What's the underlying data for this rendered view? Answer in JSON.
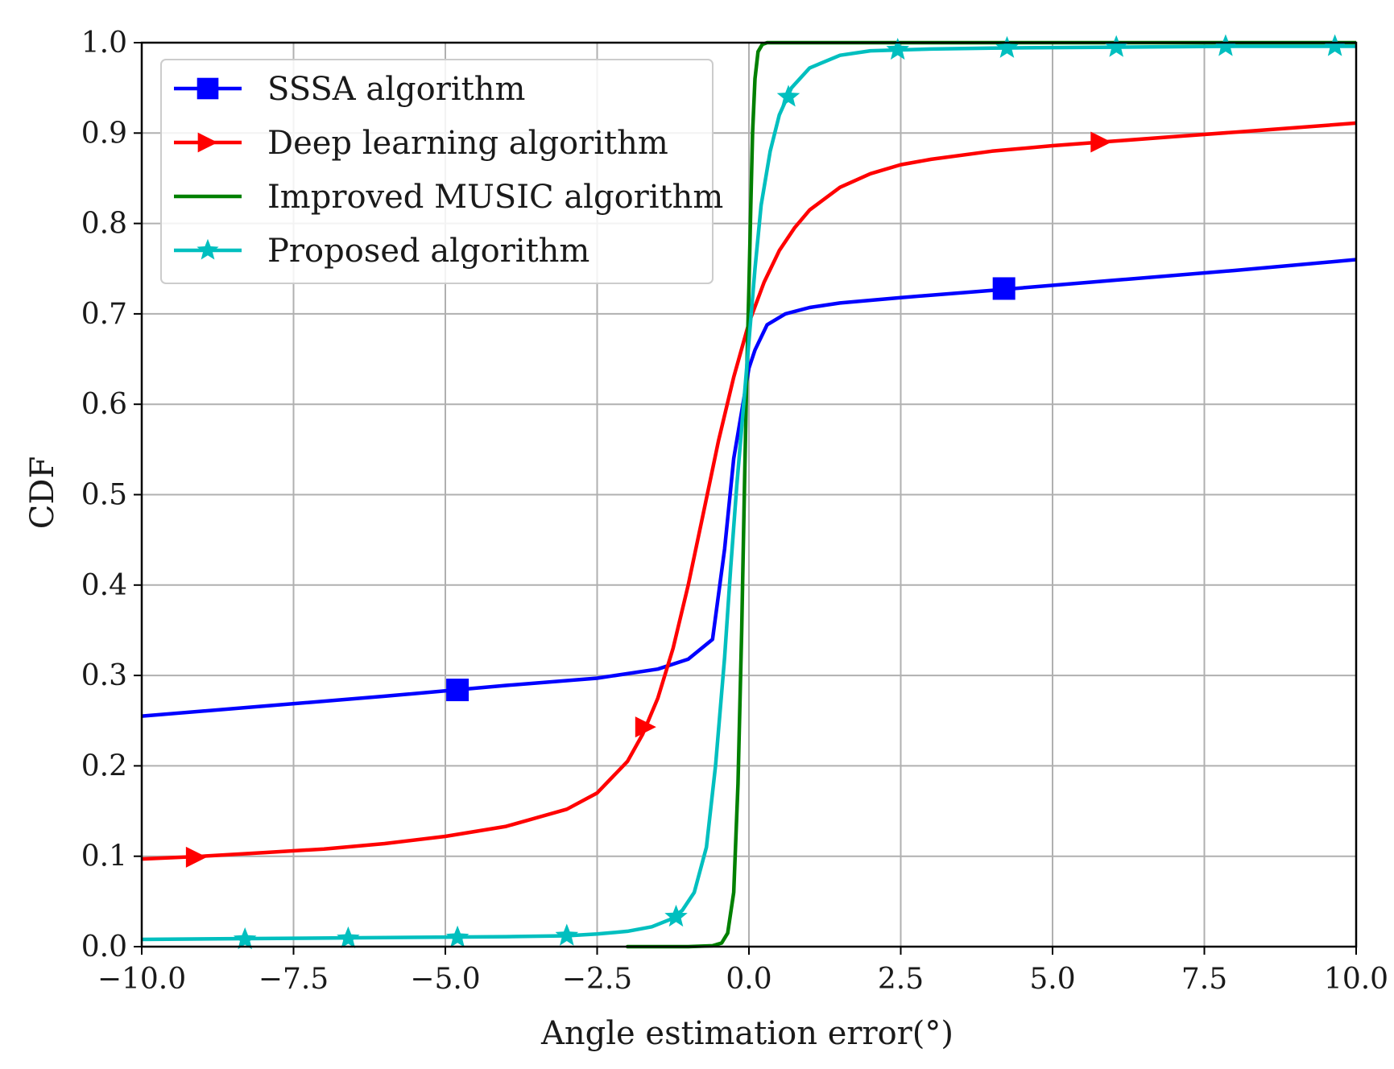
{
  "chart_data": {
    "type": "line",
    "title": "",
    "xlabel": "Angle estimation error(°)",
    "ylabel": "CDF",
    "xlim": [
      -10.0,
      10.0
    ],
    "ylim": [
      0.0,
      1.0
    ],
    "grid": true,
    "legend_position": "top-left",
    "x_ticks": [
      -10.0,
      -7.5,
      -5.0,
      -2.5,
      0.0,
      2.5,
      5.0,
      7.5,
      10.0
    ],
    "x_tick_labels": [
      "−10.0",
      "−7.5",
      "−5.0",
      "−2.5",
      "0.0",
      "2.5",
      "5.0",
      "7.5",
      "10.0"
    ],
    "y_ticks": [
      0.0,
      0.1,
      0.2,
      0.3,
      0.4,
      0.5,
      0.6,
      0.7,
      0.8,
      0.9,
      1.0
    ],
    "y_tick_labels": [
      "0.0",
      "0.1",
      "0.2",
      "0.3",
      "0.4",
      "0.5",
      "0.6",
      "0.7",
      "0.8",
      "0.9",
      "1.0"
    ],
    "series": [
      {
        "name": "SSSA algorithm",
        "color": "#0000ff",
        "marker": "square",
        "x": [
          -10,
          -8,
          -6,
          -4,
          -2.5,
          -1.5,
          -1.0,
          -0.6,
          -0.4,
          -0.25,
          -0.1,
          0.0,
          0.1,
          0.3,
          0.6,
          1.0,
          1.5,
          2.5,
          4.0,
          6.0,
          8.0,
          10.0
        ],
        "y": [
          0.255,
          0.266,
          0.277,
          0.289,
          0.297,
          0.307,
          0.318,
          0.34,
          0.44,
          0.54,
          0.6,
          0.64,
          0.66,
          0.688,
          0.7,
          0.707,
          0.712,
          0.718,
          0.726,
          0.737,
          0.748,
          0.76
        ],
        "markers_x": [
          -4.8,
          4.2
        ],
        "markers_y": [
          0.284,
          0.728
        ]
      },
      {
        "name": "Deep learning algorithm",
        "color": "#ff0000",
        "marker": "triangle-right",
        "x": [
          -10,
          -9,
          -8,
          -7,
          -6,
          -5,
          -4,
          -3,
          -2.5,
          -2.0,
          -1.75,
          -1.5,
          -1.25,
          -1.0,
          -0.75,
          -0.5,
          -0.25,
          0.0,
          0.25,
          0.5,
          0.75,
          1.0,
          1.5,
          2.0,
          2.5,
          3.0,
          4.0,
          5.0,
          6.0,
          7.0,
          8.0,
          9.0,
          10.0
        ],
        "y": [
          0.097,
          0.1,
          0.104,
          0.108,
          0.114,
          0.122,
          0.133,
          0.152,
          0.17,
          0.205,
          0.235,
          0.275,
          0.33,
          0.4,
          0.48,
          0.56,
          0.63,
          0.69,
          0.735,
          0.77,
          0.795,
          0.815,
          0.84,
          0.855,
          0.865,
          0.871,
          0.88,
          0.886,
          0.891,
          0.896,
          0.901,
          0.906,
          0.911
        ],
        "markers_x": [
          -9.1,
          -1.7,
          5.8
        ],
        "markers_y": [
          0.099,
          0.243,
          0.89
        ]
      },
      {
        "name": "Improved MUSIC algorithm",
        "color": "#008000",
        "marker": "none",
        "x": [
          -2.0,
          -1.0,
          -0.6,
          -0.45,
          -0.35,
          -0.25,
          -0.18,
          -0.12,
          -0.07,
          -0.03,
          0.0,
          0.03,
          0.06,
          0.1,
          0.15,
          0.22,
          0.3,
          0.5,
          1.0,
          2.0,
          5.0,
          10.0
        ],
        "y": [
          0.0,
          0.0,
          0.001,
          0.004,
          0.015,
          0.06,
          0.18,
          0.35,
          0.52,
          0.65,
          0.73,
          0.82,
          0.9,
          0.96,
          0.99,
          0.998,
          1.0,
          1.0,
          1.0,
          1.0,
          1.0,
          1.0
        ]
      },
      {
        "name": "Proposed algorithm",
        "color": "#00bfbf",
        "marker": "star",
        "x": [
          -10,
          -8,
          -6,
          -4,
          -3,
          -2.5,
          -2.0,
          -1.6,
          -1.3,
          -1.1,
          -0.9,
          -0.7,
          -0.55,
          -0.4,
          -0.3,
          -0.2,
          -0.1,
          0.0,
          0.1,
          0.2,
          0.35,
          0.5,
          0.7,
          1.0,
          1.5,
          2.0,
          3.0,
          4.0,
          6.0,
          8.0,
          10.0
        ],
        "y": [
          0.008,
          0.009,
          0.01,
          0.011,
          0.012,
          0.014,
          0.017,
          0.022,
          0.03,
          0.04,
          0.06,
          0.11,
          0.2,
          0.32,
          0.42,
          0.51,
          0.59,
          0.67,
          0.75,
          0.82,
          0.88,
          0.92,
          0.95,
          0.972,
          0.986,
          0.991,
          0.993,
          0.994,
          0.995,
          0.996,
          0.996
        ],
        "markers_x": [
          -8.3,
          -6.6,
          -4.8,
          -3.0,
          -1.2,
          0.65,
          2.45,
          4.25,
          6.05,
          7.85,
          9.65
        ],
        "markers_y": [
          0.008,
          0.009,
          0.01,
          0.012,
          0.033,
          0.94,
          0.992,
          0.994,
          0.995,
          0.996,
          0.996
        ]
      }
    ]
  }
}
